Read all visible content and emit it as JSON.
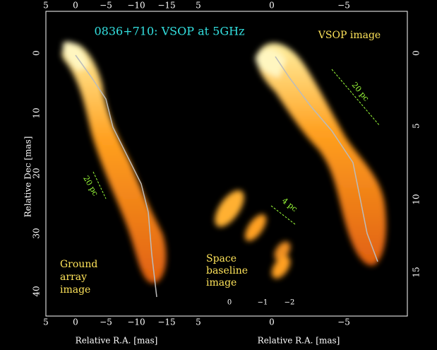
{
  "title": "0836+710: VSOP at 5GHz",
  "panel_labels": {
    "right": "VSOP image",
    "left": "Ground array image",
    "inset": "Space baseline image"
  },
  "axes": {
    "y_label": "Relative Dec [mas]",
    "x_label_left": "Relative R.A. [mas]",
    "x_label_right": "Relative R.A. [mas]",
    "top_ticks": [
      "5",
      "0",
      "−5",
      "−10",
      "−15",
      "5",
      "0",
      "−5"
    ],
    "bottom_ticks": [
      "5",
      "0",
      "−5",
      "−10",
      "−15",
      "5",
      "0",
      "−5"
    ],
    "left_ticks": [
      "0",
      "10",
      "20",
      "30",
      "40"
    ],
    "right_ticks": [
      "0",
      "5",
      "10",
      "15"
    ],
    "inset_ticks": [
      "0",
      "−1",
      "−2"
    ]
  },
  "scale_bars": [
    "20 pc",
    "20 pc",
    "4 pc"
  ]
}
